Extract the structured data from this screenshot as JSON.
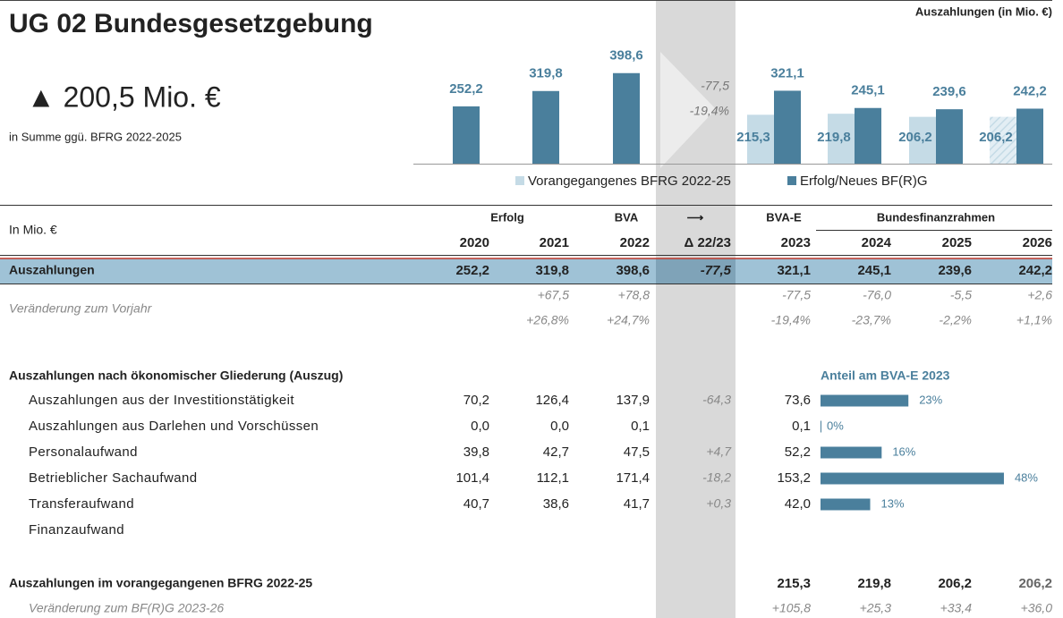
{
  "header": {
    "title": "UG 02 Bundesgesetzgebung",
    "headline": "▲ 200,5 Mio. €",
    "headline_note": "in Summe ggü. BFRG 2022-2025",
    "unit_note": "Auszahlungen (in Mio. €)"
  },
  "chart_data": {
    "type": "bar",
    "ylim": [
      0,
      400
    ],
    "annotations": [
      "-77,5",
      "-19,4%"
    ],
    "series": [
      {
        "name": "Vorangegangenes BFRG 2022-25",
        "color": "#c5dbe6",
        "values": [
          null,
          null,
          null,
          215.3,
          219.8,
          206.2,
          206.2
        ],
        "value_labels": [
          null,
          null,
          null,
          "215,3",
          "219,8",
          "206,2",
          "206,2"
        ]
      },
      {
        "name": "Erfolg/Neues BF(R)G",
        "color": "#4a7f9c",
        "values": [
          252.2,
          319.8,
          398.6,
          321.1,
          245.1,
          239.6,
          242.2
        ],
        "value_labels": [
          "252,2",
          "319,8",
          "398,6",
          "321,1",
          "245,1",
          "239,6",
          "242,2"
        ]
      }
    ]
  },
  "table": {
    "unit_label": "In Mio. €",
    "group_headers": [
      "Erfolg",
      "BVA",
      "⟶",
      "BVA-E",
      "Bundesfinanzrahmen"
    ],
    "columns": [
      "2020",
      "2021",
      "2022",
      "Δ 22/23",
      "2023",
      "2024",
      "2025",
      "2026"
    ],
    "main_row": {
      "label": "Auszahlungen",
      "cells": [
        "252,2",
        "319,8",
        "398,6",
        "-77,5",
        "321,1",
        "245,1",
        "239,6",
        "242,2"
      ]
    },
    "change_row": {
      "label": "Veränderung zum Vorjahr",
      "abs": [
        null,
        "+67,5",
        "+78,8",
        null,
        "-77,5",
        "-76,0",
        "-5,5",
        "+2,6"
      ],
      "pct": [
        null,
        "+26,8%",
        "+24,7%",
        null,
        "-19,4%",
        "-23,7%",
        "-2,2%",
        "+1,1%"
      ]
    },
    "section": {
      "title": "Auszahlungen nach ökonomischer Gliederung (Auszug)",
      "share_title": "Anteil am BVA-E 2023",
      "rows": [
        {
          "label": "Auszahlungen aus der Investitionstätigkeit",
          "cells": [
            "70,2",
            "126,4",
            "137,9",
            "-64,3",
            "73,6"
          ],
          "share": 23,
          "share_label": "23%"
        },
        {
          "label": "Auszahlungen aus Darlehen und Vorschüssen",
          "cells": [
            "0,0",
            "0,0",
            "0,1",
            null,
            "0,1"
          ],
          "share": 0,
          "share_label": "0%"
        },
        {
          "label": "Personalaufwand",
          "cells": [
            "39,8",
            "42,7",
            "47,5",
            "+4,7",
            "52,2"
          ],
          "share": 16,
          "share_label": "16%"
        },
        {
          "label": "Betrieblicher Sachaufwand",
          "cells": [
            "101,4",
            "112,1",
            "171,4",
            "-18,2",
            "153,2"
          ],
          "share": 48,
          "share_label": "48%"
        },
        {
          "label": "Transferaufwand",
          "cells": [
            "40,7",
            "38,6",
            "41,7",
            "+0,3",
            "42,0"
          ],
          "share": 13,
          "share_label": "13%"
        },
        {
          "label": "Finanzaufwand",
          "cells": [
            null,
            null,
            null,
            null,
            null
          ],
          "share": null,
          "share_label": null
        }
      ]
    },
    "prev_row": {
      "label": "Auszahlungen im vorangegangenen BFRG 2022-25",
      "cells": [
        null,
        null,
        null,
        null,
        "215,3",
        "219,8",
        "206,2",
        "206,2"
      ]
    },
    "prev_change_row": {
      "label": "Veränderung zum BF(R)G 2023-26",
      "cells": [
        null,
        null,
        null,
        null,
        "+105,8",
        "+25,3",
        "+33,4",
        "+36,0"
      ]
    }
  }
}
